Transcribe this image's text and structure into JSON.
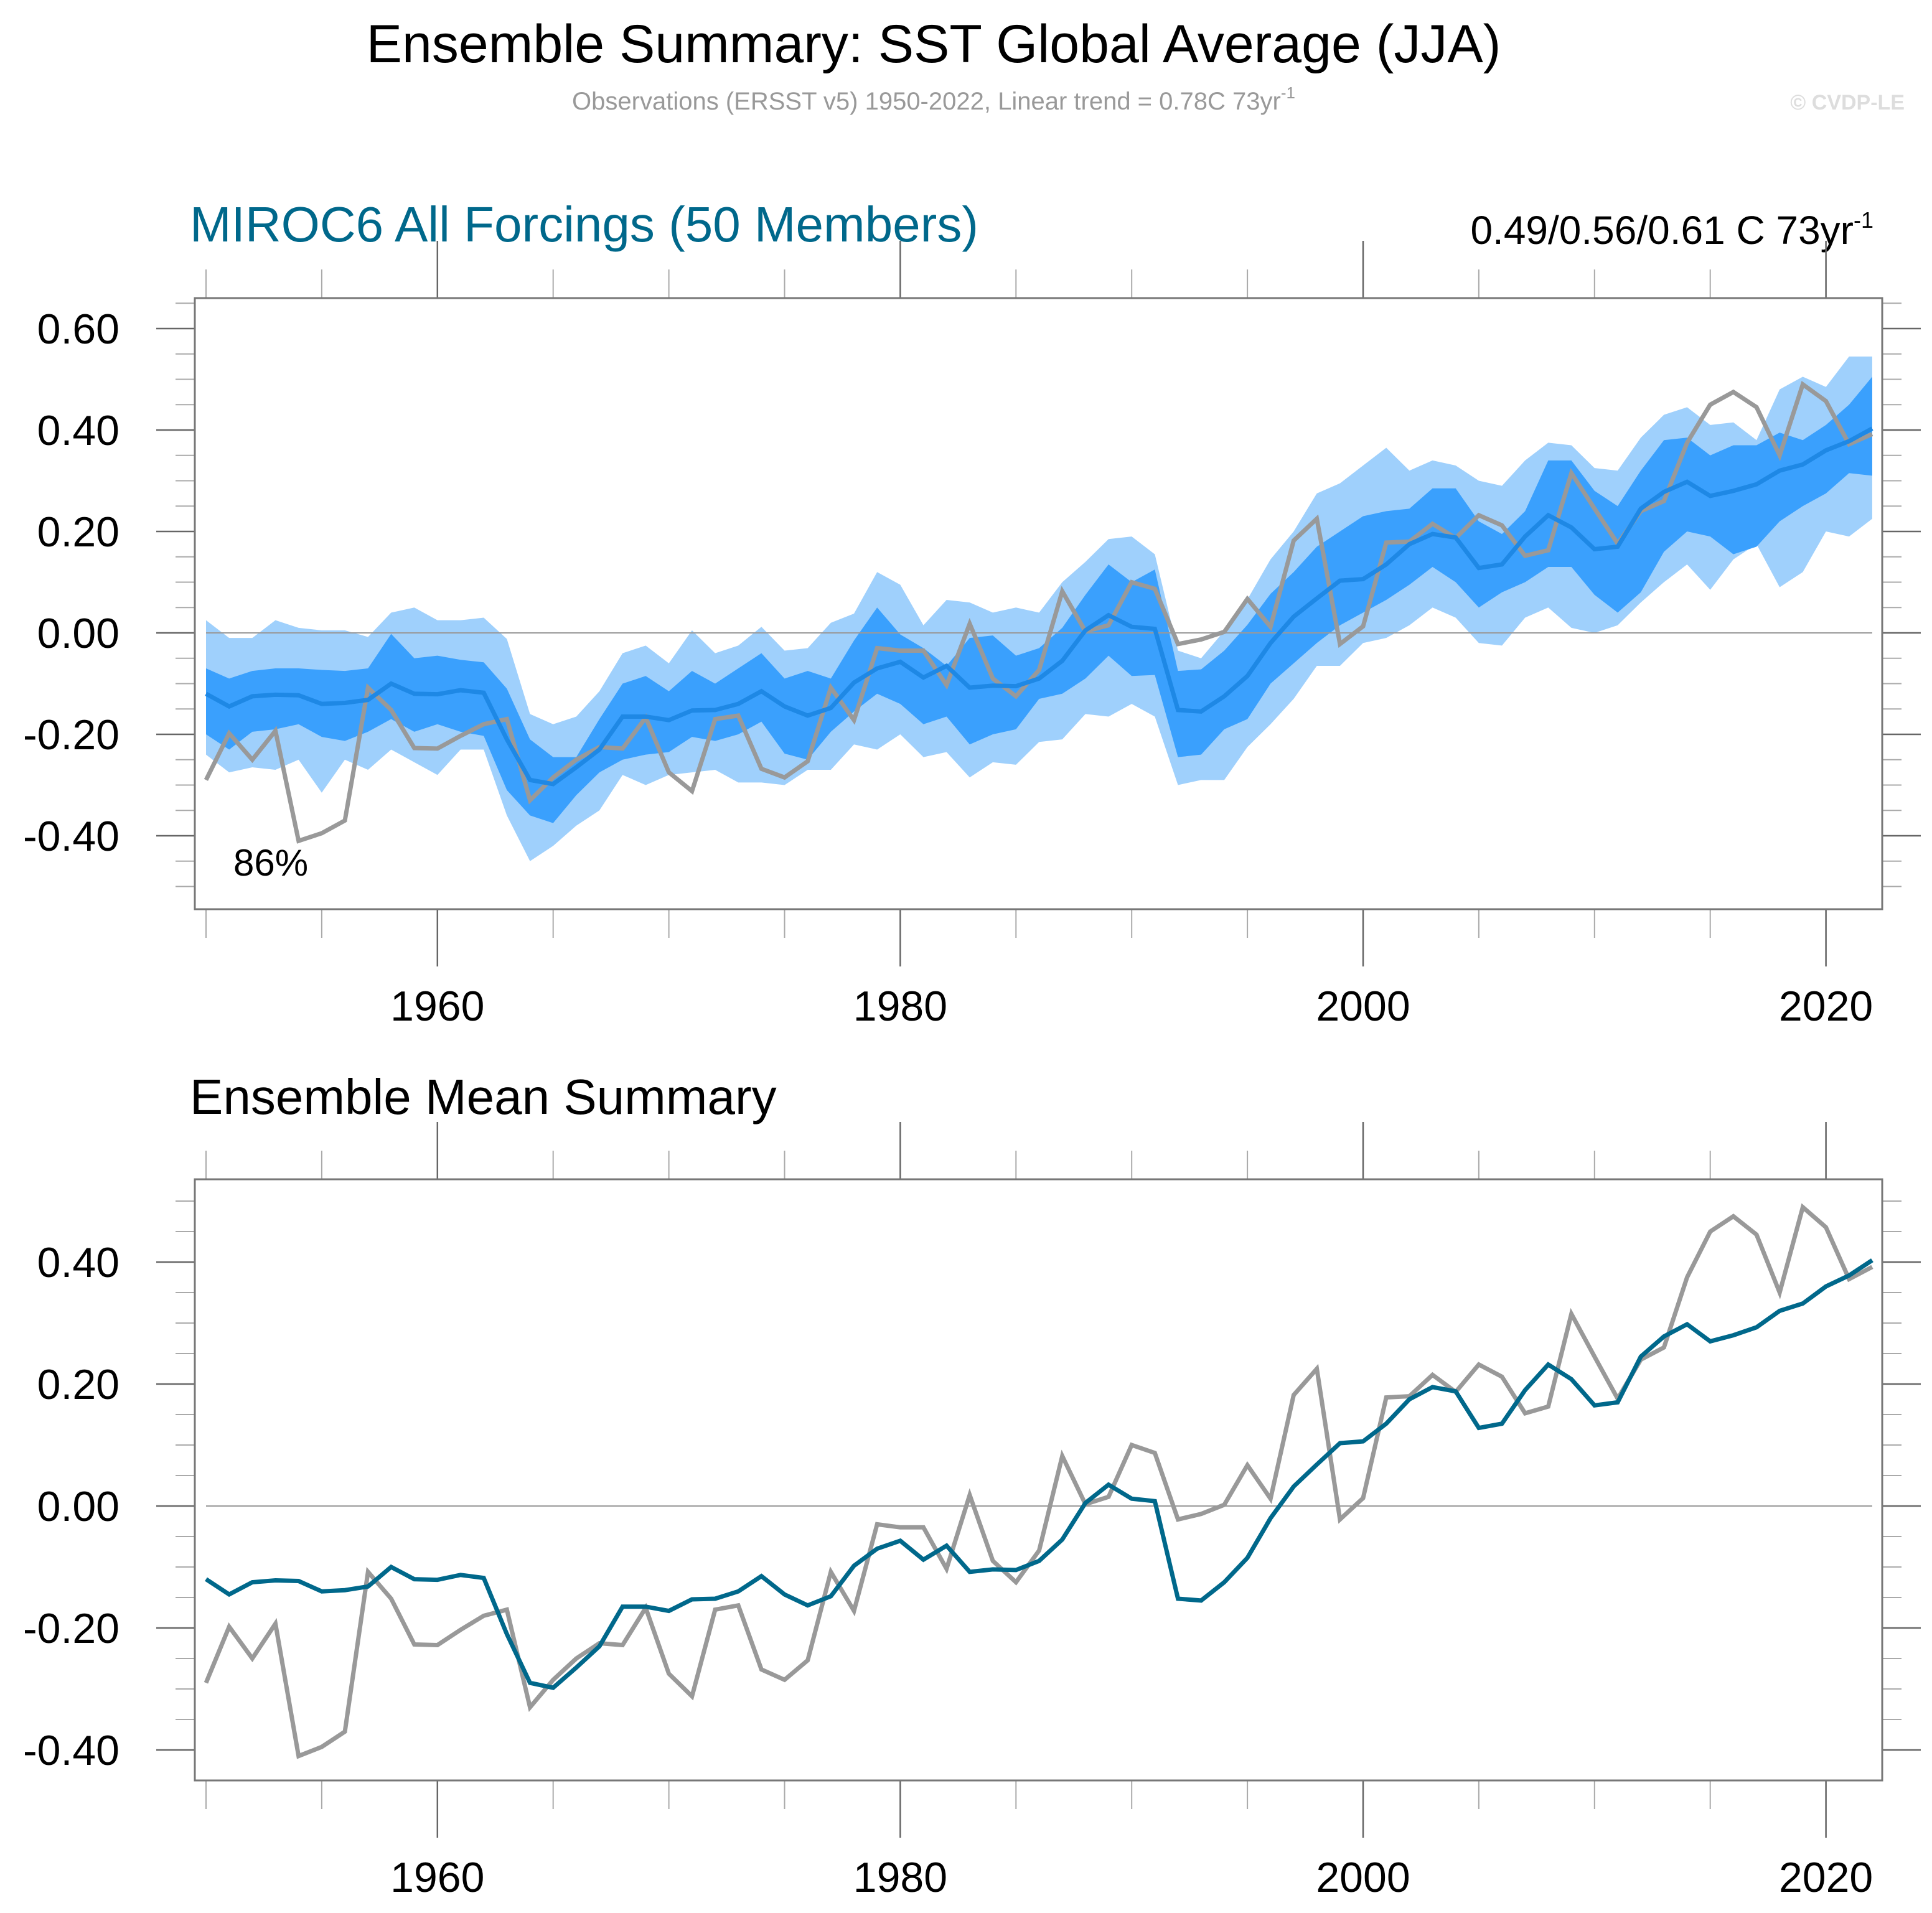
{
  "header": {
    "title": "Ensemble Summary: SST Global Average (JJA)",
    "subtitle": "Observations (ERSST v5) 1950-2022, Linear trend = 0.78C 73yr",
    "subtitle_superscript": "-1",
    "copyright": "© CVDP-LE"
  },
  "colors": {
    "model_title": "#00688b",
    "outer_band": "#9fd0fc",
    "inner_band": "#3aa0fd",
    "ensemble_mean_top": "#1e88e5",
    "ensemble_mean_bottom": "#00688b",
    "observations": "#999999"
  },
  "chart_data": [
    {
      "type": "area",
      "title": "MIROC6 All Forcings (50 Members)",
      "trend_text": "0.49/0.56/0.61 C 73yr",
      "trend_superscript": "-1",
      "annotation": "86%",
      "xlabel": "",
      "ylabel": "",
      "xlim": [
        1949.5,
        2022.5
      ],
      "ylim": [
        -0.54,
        0.66
      ],
      "yticks": [
        0.6,
        0.4,
        0.2,
        0.0,
        -0.2,
        -0.4
      ],
      "ytick_labels": [
        "0.60",
        "0.40",
        "0.20",
        "0.00",
        "-0.20",
        "-0.40"
      ],
      "xticks": [
        1960,
        1980,
        2000,
        2020
      ],
      "xtick_labels": [
        "1960",
        "1980",
        "2000",
        "2020"
      ],
      "zero_line": true,
      "grid": false,
      "series_ref": [
        "outer_band",
        "inner_band",
        "ensemble_mean",
        "observations"
      ]
    },
    {
      "type": "line",
      "title": "Ensemble Mean Summary",
      "xlabel": "",
      "ylabel": "",
      "xlim": [
        1949.5,
        2022.5
      ],
      "ylim": [
        -0.45,
        0.53
      ],
      "yticks": [
        0.4,
        0.2,
        0.0,
        -0.2,
        -0.4
      ],
      "ytick_labels": [
        "0.40",
        "0.20",
        "0.00",
        "-0.20",
        "-0.40"
      ],
      "xticks": [
        1960,
        1980,
        2000,
        2020
      ],
      "xtick_labels": [
        "1960",
        "1980",
        "2000",
        "2020"
      ],
      "zero_line": true,
      "grid": false,
      "series_ref": [
        "ensemble_mean",
        "observations"
      ]
    }
  ],
  "series": {
    "start_year": 1950,
    "ensemble_mean": [
      -0.12,
      -0.145,
      -0.125,
      -0.122,
      -0.123,
      -0.14,
      -0.138,
      -0.132,
      -0.1,
      -0.12,
      -0.121,
      -0.113,
      -0.118,
      -0.21,
      -0.29,
      -0.298,
      -0.265,
      -0.23,
      -0.165,
      -0.165,
      -0.172,
      -0.153,
      -0.152,
      -0.14,
      -0.115,
      -0.145,
      -0.163,
      -0.148,
      -0.098,
      -0.07,
      -0.057,
      -0.088,
      -0.065,
      -0.108,
      -0.104,
      -0.105,
      -0.09,
      -0.055,
      0.005,
      0.035,
      0.012,
      0.008,
      -0.152,
      -0.155,
      -0.125,
      -0.085,
      -0.02,
      0.032,
      0.068,
      0.103,
      0.106,
      0.135,
      0.175,
      0.195,
      0.188,
      0.128,
      0.135,
      0.19,
      0.232,
      0.208,
      0.165,
      0.17,
      0.245,
      0.278,
      0.298,
      0.27,
      0.28,
      0.293,
      0.32,
      0.332,
      0.36,
      0.378,
      0.403
    ],
    "observations": [
      -0.29,
      -0.198,
      -0.25,
      -0.193,
      -0.41,
      -0.395,
      -0.37,
      -0.108,
      -0.152,
      -0.227,
      -0.228,
      -0.203,
      -0.18,
      -0.17,
      -0.33,
      -0.285,
      -0.25,
      -0.225,
      -0.228,
      -0.167,
      -0.275,
      -0.312,
      -0.17,
      -0.163,
      -0.268,
      -0.285,
      -0.253,
      -0.108,
      -0.172,
      -0.03,
      -0.035,
      -0.035,
      -0.103,
      0.018,
      -0.09,
      -0.125,
      -0.073,
      0.082,
      0.003,
      0.015,
      0.1,
      0.087,
      -0.022,
      -0.013,
      0.002,
      0.067,
      0.012,
      0.182,
      0.225,
      -0.022,
      0.013,
      0.178,
      0.18,
      0.215,
      0.187,
      0.232,
      0.212,
      0.152,
      0.163,
      0.315,
      0.245,
      0.176,
      0.24,
      0.26,
      0.375,
      0.45,
      0.475,
      0.445,
      0.35,
      0.49,
      0.457,
      0.372,
      0.392
    ],
    "outer_band_high": [
      0.025,
      -0.01,
      -0.01,
      0.025,
      0.01,
      0.005,
      0.005,
      -0.008,
      0.04,
      0.05,
      0.025,
      0.025,
      0.03,
      -0.012,
      -0.16,
      -0.18,
      -0.165,
      -0.115,
      -0.04,
      -0.025,
      -0.06,
      0.005,
      -0.04,
      -0.025,
      0.012,
      -0.035,
      -0.03,
      0.02,
      0.038,
      0.12,
      0.095,
      0.015,
      0.065,
      0.06,
      0.04,
      0.05,
      0.04,
      0.1,
      0.14,
      0.185,
      0.19,
      0.155,
      -0.035,
      -0.05,
      0.004,
      0.066,
      0.145,
      0.2,
      0.275,
      0.295,
      0.33,
      0.365,
      0.32,
      0.34,
      0.33,
      0.3,
      0.29,
      0.34,
      0.375,
      0.37,
      0.325,
      0.32,
      0.385,
      0.43,
      0.445,
      0.41,
      0.415,
      0.38,
      0.48,
      0.505,
      0.485,
      0.545,
      0.545
    ],
    "inner_band_high": [
      -0.07,
      -0.09,
      -0.075,
      -0.07,
      -0.07,
      -0.073,
      -0.075,
      -0.07,
      -0.002,
      -0.05,
      -0.045,
      -0.053,
      -0.058,
      -0.11,
      -0.21,
      -0.245,
      -0.245,
      -0.17,
      -0.1,
      -0.085,
      -0.115,
      -0.075,
      -0.1,
      -0.07,
      -0.04,
      -0.09,
      -0.075,
      -0.09,
      -0.015,
      0.05,
      -0.003,
      -0.03,
      -0.065,
      -0.01,
      -0.005,
      -0.045,
      -0.03,
      0.01,
      0.075,
      0.135,
      0.1,
      0.125,
      -0.075,
      -0.072,
      -0.035,
      0.016,
      0.077,
      0.12,
      0.17,
      0.2,
      0.23,
      0.24,
      0.245,
      0.285,
      0.285,
      0.22,
      0.195,
      0.24,
      0.34,
      0.34,
      0.28,
      0.25,
      0.32,
      0.38,
      0.385,
      0.35,
      0.37,
      0.37,
      0.395,
      0.38,
      0.41,
      0.45,
      0.505
    ],
    "inner_band_low": [
      -0.2,
      -0.23,
      -0.195,
      -0.19,
      -0.18,
      -0.205,
      -0.213,
      -0.195,
      -0.17,
      -0.195,
      -0.18,
      -0.195,
      -0.203,
      -0.31,
      -0.36,
      -0.375,
      -0.32,
      -0.275,
      -0.25,
      -0.24,
      -0.235,
      -0.205,
      -0.213,
      -0.2,
      -0.175,
      -0.238,
      -0.25,
      -0.195,
      -0.155,
      -0.12,
      -0.14,
      -0.18,
      -0.165,
      -0.22,
      -0.2,
      -0.19,
      -0.13,
      -0.12,
      -0.09,
      -0.045,
      -0.085,
      -0.083,
      -0.245,
      -0.24,
      -0.19,
      -0.17,
      -0.1,
      -0.06,
      -0.02,
      0.015,
      0.04,
      0.065,
      0.095,
      0.13,
      0.1,
      0.05,
      0.08,
      0.1,
      0.13,
      0.13,
      0.075,
      0.04,
      0.08,
      0.16,
      0.2,
      0.19,
      0.155,
      0.17,
      0.22,
      0.25,
      0.275,
      0.315,
      0.31
    ],
    "outer_band_low": [
      -0.24,
      -0.275,
      -0.265,
      -0.27,
      -0.25,
      -0.315,
      -0.25,
      -0.27,
      -0.23,
      -0.255,
      -0.28,
      -0.23,
      -0.23,
      -0.36,
      -0.45,
      -0.42,
      -0.38,
      -0.35,
      -0.28,
      -0.3,
      -0.28,
      -0.275,
      -0.27,
      -0.295,
      -0.295,
      -0.3,
      -0.27,
      -0.27,
      -0.22,
      -0.23,
      -0.2,
      -0.245,
      -0.235,
      -0.285,
      -0.255,
      -0.26,
      -0.215,
      -0.21,
      -0.16,
      -0.165,
      -0.14,
      -0.165,
      -0.3,
      -0.29,
      -0.29,
      -0.225,
      -0.18,
      -0.13,
      -0.065,
      -0.065,
      -0.02,
      -0.01,
      0.015,
      0.05,
      0.03,
      -0.02,
      -0.025,
      0.03,
      0.05,
      0.01,
      0,
      0.015,
      0.06,
      0.1,
      0.135,
      0.085,
      0.145,
      0.175,
      0.09,
      0.12,
      0.2,
      0.19,
      0.225
    ]
  }
}
